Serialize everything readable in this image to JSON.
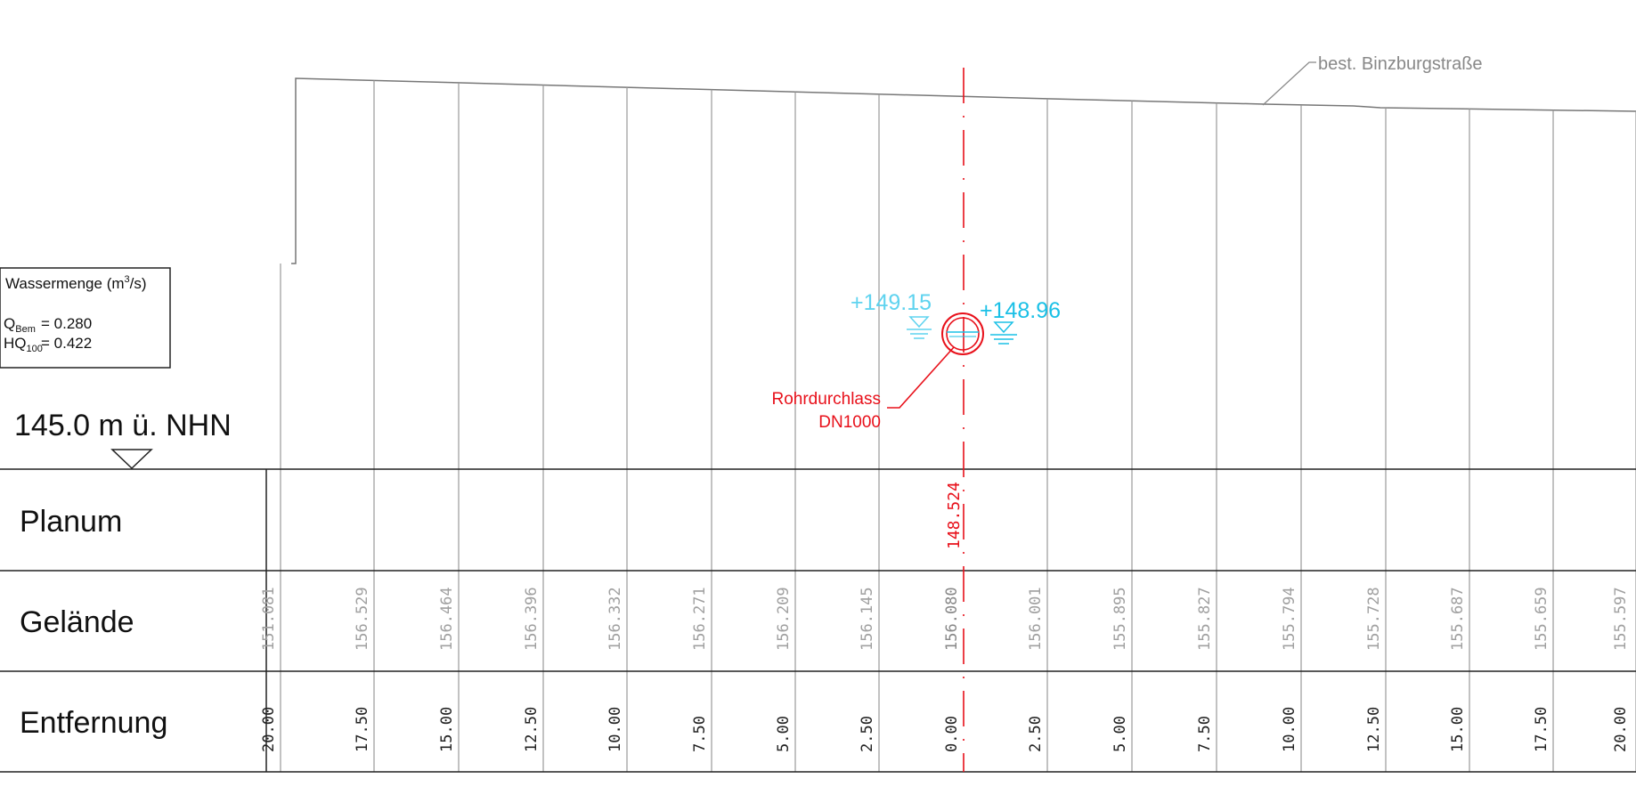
{
  "reference_level": "145.0 m ü. NHN",
  "road_label": "best. Binzburgstraße",
  "legend": {
    "title": "Wassermenge (m",
    "title_sup": "3",
    "title_end": "/s)",
    "rows": [
      {
        "symbol": "Q",
        "sub": "Bem",
        "eq": "= 0.280"
      },
      {
        "symbol": "HQ",
        "sub": "100",
        "eq": "= 0.422"
      }
    ]
  },
  "water_levels": [
    {
      "value": "+149.15",
      "color": "#5fd3ef"
    },
    {
      "value": "+148.96",
      "color": "#1ac0e6"
    }
  ],
  "pipe_label": [
    "Rohrdurchlass",
    "DN1000"
  ],
  "row_labels": {
    "planum": "Planum",
    "gelaende": "Gelände",
    "entfernung": "Entfernung"
  },
  "planum_value": "148.524",
  "columns": [
    {
      "gelaende": "151.081",
      "entfernung": "20.00"
    },
    {
      "gelaende": "156.529",
      "entfernung": "17.50"
    },
    {
      "gelaende": "156.464",
      "entfernung": "15.00"
    },
    {
      "gelaende": "156.396",
      "entfernung": "12.50"
    },
    {
      "gelaende": "156.332",
      "entfernung": "10.00"
    },
    {
      "gelaende": "156.271",
      "entfernung": "7.50"
    },
    {
      "gelaende": "156.209",
      "entfernung": "5.00"
    },
    {
      "gelaende": "156.145",
      "entfernung": "2.50"
    },
    {
      "gelaende": "156.080",
      "entfernung": "0.00"
    },
    {
      "gelaende": "156.001",
      "entfernung": "2.50"
    },
    {
      "gelaende": "155.895",
      "entfernung": "5.00"
    },
    {
      "gelaende": "155.827",
      "entfernung": "7.50"
    },
    {
      "gelaende": "155.794",
      "entfernung": "10.00"
    },
    {
      "gelaende": "155.728",
      "entfernung": "12.50"
    },
    {
      "gelaende": "155.687",
      "entfernung": "15.00"
    },
    {
      "gelaende": "155.659",
      "entfernung": "17.50"
    },
    {
      "gelaende": "155.597",
      "entfernung": "20.00"
    }
  ],
  "colors": {
    "axis": "#e8101a",
    "line": "#9a9a9a",
    "dark": "#222222"
  }
}
